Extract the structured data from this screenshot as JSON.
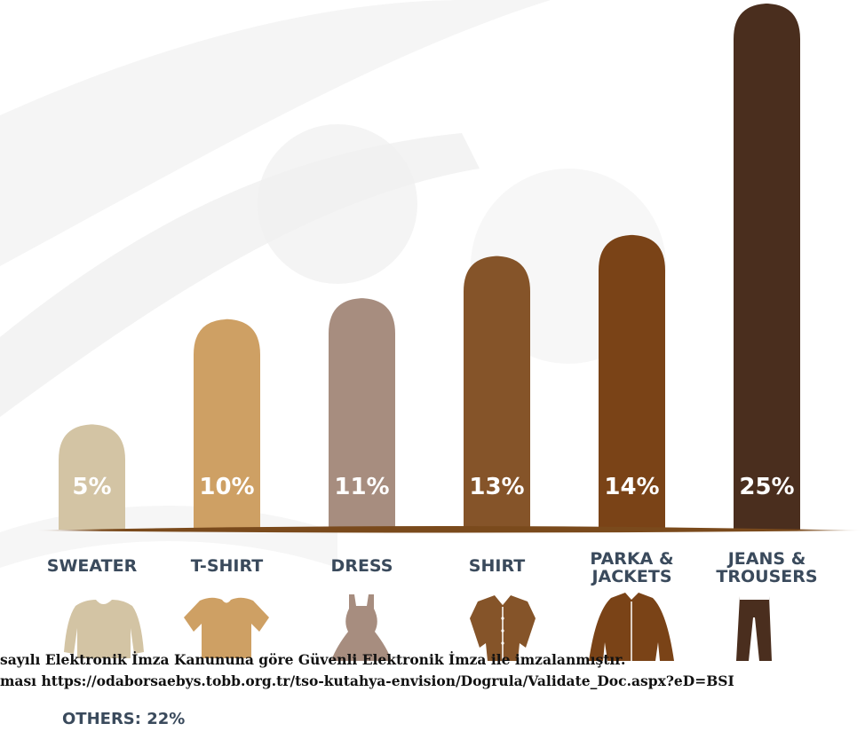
{
  "chart_data": {
    "type": "bar",
    "title": "",
    "xlabel": "",
    "ylabel": "",
    "ylim": [
      0,
      25
    ],
    "categories": [
      {
        "lines": [
          "SWEATER"
        ],
        "color": "#d3c4a4",
        "icon": "sweater-icon"
      },
      {
        "lines": [
          "T-SHIRT"
        ],
        "color": "#cea064",
        "icon": "tshirt-icon"
      },
      {
        "lines": [
          "DRESS"
        ],
        "color": "#a78d7f",
        "icon": "dress-icon"
      },
      {
        "lines": [
          "SHIRT"
        ],
        "color": "#855429",
        "icon": "shirt-icon"
      },
      {
        "lines": [
          "PARKA &",
          "JACKETS"
        ],
        "color": "#7a4317",
        "icon": "jacket-icon"
      },
      {
        "lines": [
          "JEANS &",
          "TROUSERS"
        ],
        "color": "#4a2e1e",
        "icon": "trousers-icon"
      }
    ],
    "values": [
      5,
      10,
      11,
      13,
      14,
      25
    ],
    "value_labels": [
      "5%",
      "10%",
      "11%",
      "13%",
      "14%",
      "25%"
    ],
    "others_label": "OTHERS: 22%",
    "baseline_color": "#7a4a1c"
  },
  "watermark": {
    "line1": "sayılı Elektronik İmza Kanununa göre Güvenli Elektronik İmza ile imzalanmıştır.",
    "line2": "ması https://odaborsaebys.tobb.org.tr/tso-kutahya-envision/Dogrula/Validate_Doc.aspx?eD=BSI"
  }
}
